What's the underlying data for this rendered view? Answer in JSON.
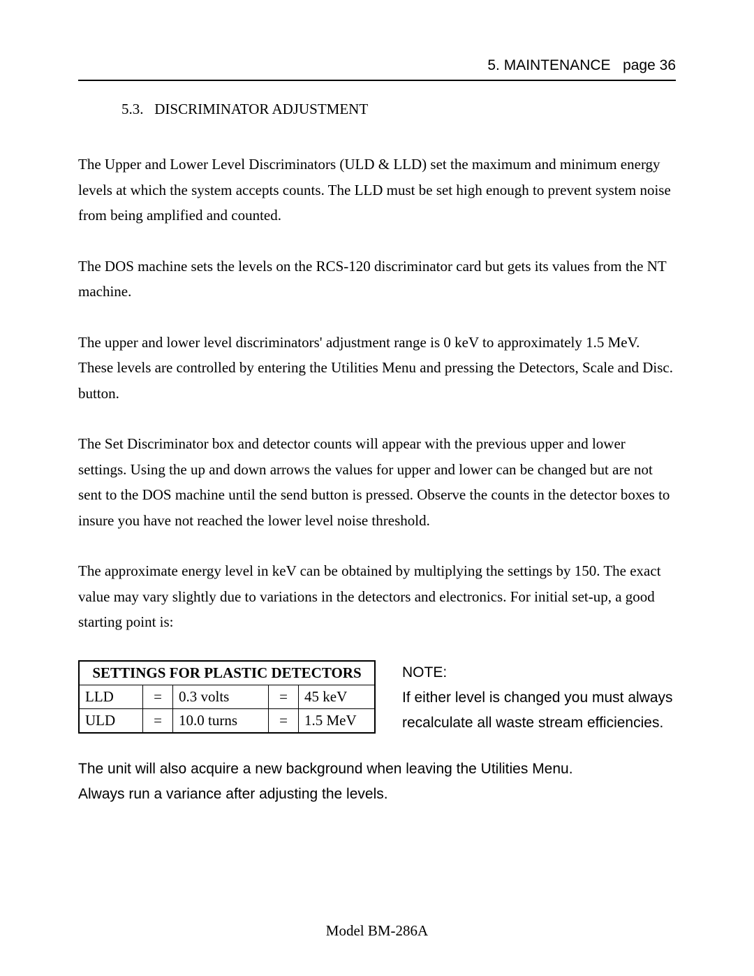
{
  "header": {
    "chapter": "5. MAINTENANCE",
    "page_label": "page",
    "page_number": "36"
  },
  "section": {
    "number": "5.3.",
    "title": "DISCRIMINATOR ADJUSTMENT"
  },
  "paragraphs": {
    "p1": "The Upper and Lower Level Discriminators (ULD & LLD) set the maximum and minimum energy levels at which the system accepts counts.  The LLD must be set high enough to prevent system noise from being amplified and counted.",
    "p2": "The DOS machine sets the levels on the RCS-120 discriminator card but gets its values from the NT machine.",
    "p3": "The upper and lower level discriminators' adjustment range is 0 keV to approximately 1.5 MeV. These levels are controlled by entering the Utilities Menu and pressing the Detectors, Scale and Disc. button.",
    "p4": "The Set Discriminator box and detector counts will appear with the previous upper and lower settings.  Using the up and down arrows the values for upper and lower can be changed but are not sent to the DOS machine until the send button is pressed. Observe the counts in the detector boxes to insure you have not reached the lower level noise threshold.",
    "p5": "The approximate energy level in keV can be obtained by multiplying the settings by 150.  The exact value may vary slightly due to variations in the detectors and electronics.  For initial set-up, a good starting point is:"
  },
  "table": {
    "title": "SETTINGS FOR PLASTIC DETECTORS",
    "rows": [
      {
        "label": "LLD",
        "eq1": "=",
        "value": "0.3 volts",
        "eq2": "=",
        "result": "45 keV"
      },
      {
        "label": "ULD",
        "eq1": "=",
        "value": "10.0 turns",
        "eq2": "=",
        "result": "1.5 MeV"
      }
    ]
  },
  "note": {
    "heading": "NOTE:",
    "body": "If either level is changed you must always recalculate all waste stream efficiencies."
  },
  "closing": {
    "line1": "The unit will also acquire a new background when leaving the Utilities Menu.",
    "line2": "Always run a variance after adjusting the levels."
  },
  "footer": {
    "model": "Model BM-286A"
  }
}
